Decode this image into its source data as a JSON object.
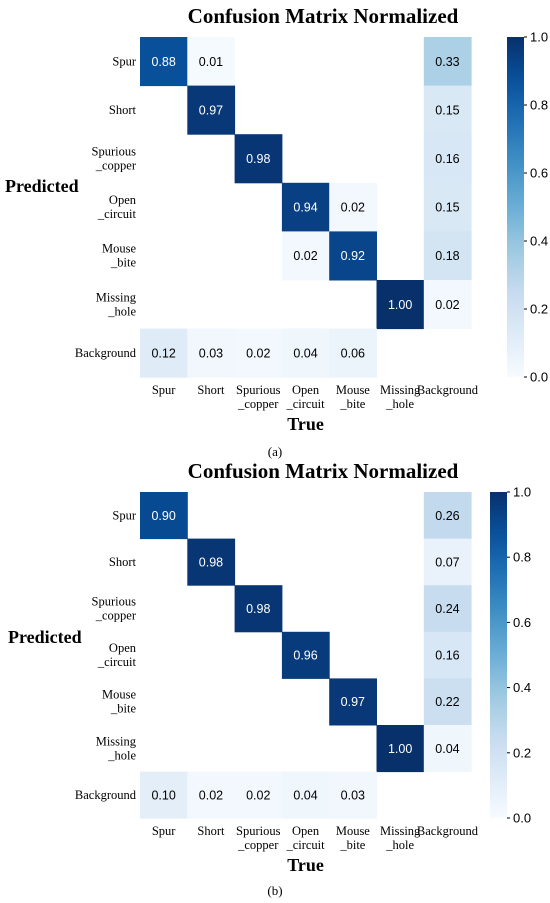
{
  "chart_data": [
    {
      "type": "heatmap",
      "title": "Confusion Matrix Normalized",
      "xlabel": "True",
      "ylabel": "Predicted",
      "x_categories": [
        "Spur",
        "Short",
        "Spurious\n_copper",
        "Open\n_circuit",
        "Mouse\n_bite",
        "Missing\n_hole",
        "Background"
      ],
      "y_categories": [
        "Spur",
        "Short",
        "Spurious\n_copper",
        "Open\n_circuit",
        "Mouse\n_bite",
        "Missing\n_hole",
        "Background"
      ],
      "values": [
        [
          0.88,
          0.01,
          null,
          null,
          null,
          null,
          0.33
        ],
        [
          null,
          0.97,
          null,
          null,
          null,
          null,
          0.15
        ],
        [
          null,
          null,
          0.98,
          null,
          null,
          null,
          0.16
        ],
        [
          null,
          null,
          null,
          0.94,
          0.02,
          null,
          0.15
        ],
        [
          null,
          null,
          null,
          0.02,
          0.92,
          null,
          0.18
        ],
        [
          null,
          null,
          null,
          null,
          null,
          1.0,
          0.02
        ],
        [
          0.12,
          0.03,
          0.02,
          0.04,
          0.06,
          null,
          null
        ]
      ],
      "value_labels": [
        [
          "0.88",
          "0.01",
          "",
          "",
          "",
          "",
          "0.33"
        ],
        [
          "",
          "0.97",
          "",
          "",
          "",
          "",
          "0.15"
        ],
        [
          "",
          "",
          "0.98",
          "",
          "",
          "",
          "0.16"
        ],
        [
          "",
          "",
          "",
          "0.94",
          "0.02",
          "",
          "0.15"
        ],
        [
          "",
          "",
          "",
          "0.02",
          "0.92",
          "",
          "0.18"
        ],
        [
          "",
          "",
          "",
          "",
          "",
          "1.00",
          "0.02"
        ],
        [
          "0.12",
          "0.03",
          "0.02",
          "0.04",
          "0.06",
          "",
          ""
        ]
      ],
      "colorbar": {
        "range": [
          0,
          1
        ],
        "ticks": [
          "0.0",
          "0.2",
          "0.4",
          "0.6",
          "0.8",
          "1.0"
        ],
        "colormap": "Blues"
      }
    },
    {
      "type": "heatmap",
      "title": "Confusion Matrix Normalized",
      "xlabel": "True",
      "ylabel": "Predicted",
      "x_categories": [
        "Spur",
        "Short",
        "Spurious\n_copper",
        "Open\n_circuit",
        "Mouse\n_bite",
        "Missing\n_hole",
        "Background"
      ],
      "y_categories": [
        "Spur",
        "Short",
        "Spurious\n_copper",
        "Open\n_circuit",
        "Mouse\n_bite",
        "Missing\n_hole",
        "Background"
      ],
      "values": [
        [
          0.9,
          null,
          null,
          null,
          null,
          null,
          0.26
        ],
        [
          null,
          0.98,
          null,
          null,
          null,
          null,
          0.07
        ],
        [
          null,
          null,
          0.98,
          null,
          null,
          null,
          0.24
        ],
        [
          null,
          null,
          null,
          0.96,
          null,
          null,
          0.16
        ],
        [
          null,
          null,
          null,
          null,
          0.97,
          null,
          0.22
        ],
        [
          null,
          null,
          null,
          null,
          null,
          1.0,
          0.04
        ],
        [
          0.1,
          0.02,
          0.02,
          0.04,
          0.03,
          null,
          null
        ]
      ],
      "value_labels": [
        [
          "0.90",
          "",
          "",
          "",
          "",
          "",
          "0.26"
        ],
        [
          "",
          "0.98",
          "",
          "",
          "",
          "",
          "0.07"
        ],
        [
          "",
          "",
          "0.98",
          "",
          "",
          "",
          "0.24"
        ],
        [
          "",
          "",
          "",
          "0.96",
          "",
          "",
          "0.16"
        ],
        [
          "",
          "",
          "",
          "",
          "0.97",
          "",
          "0.22"
        ],
        [
          "",
          "",
          "",
          "",
          "",
          "1.00",
          "0.04"
        ],
        [
          "0.10",
          "0.02",
          "0.02",
          "0.04",
          "0.03",
          "",
          ""
        ]
      ],
      "colorbar": {
        "range": [
          0,
          1
        ],
        "ticks": [
          "0.0",
          "0.2",
          "0.4",
          "0.6",
          "0.8",
          "1.0"
        ],
        "colormap": "Blues"
      }
    }
  ],
  "captions": [
    "(a)",
    "(b)"
  ]
}
